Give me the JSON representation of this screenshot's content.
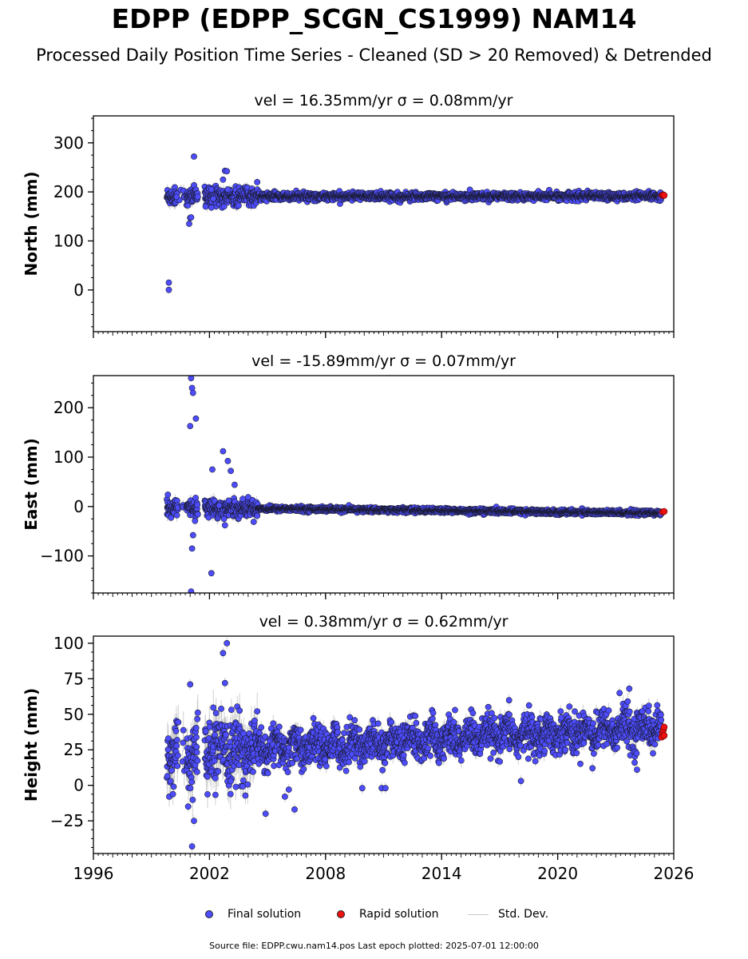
{
  "title": "EDPP (EDPP_SCGN_CS1999) NAM14",
  "subtitle": "Processed Daily Position Time Series - Cleaned (SD > 20 Removed) & Detrended",
  "colors": {
    "final": "#4d4dff",
    "rapid": "#ee1111",
    "stddev": "#bdbdbd",
    "edge": "#1a1a2e"
  },
  "legend": {
    "final": "Final solution",
    "rapid": "Rapid solution",
    "stddev": "Std. Dev."
  },
  "footer": "Source file: EDPP.cwu.nam14.pos  Last epoch plotted: 2025-07-01 12:00:00",
  "chart_data": [
    {
      "type": "scatter",
      "id": "north",
      "title": "vel = 16.35mm/yr   σ = 0.08mm/yr",
      "ylabel": "North (mm)",
      "xlim": [
        1996,
        2026
      ],
      "ylim": [
        -85,
        355
      ],
      "yticks": [
        0,
        100,
        200,
        300
      ],
      "ytick_labels": [
        "0",
        "100",
        "200",
        "300"
      ],
      "xticks": [
        1996,
        2002,
        2008,
        2014,
        2020,
        2026
      ],
      "show_xtick_labels": false,
      "outliers": [
        [
          1999.9,
          15
        ],
        [
          1999.9,
          0
        ],
        [
          2000.95,
          135
        ],
        [
          2001.0,
          147
        ],
        [
          2001.05,
          148
        ],
        [
          2001.2,
          272
        ],
        [
          2002.1,
          168
        ],
        [
          2002.2,
          186
        ],
        [
          2002.65,
          168
        ],
        [
          2002.75,
          170
        ],
        [
          2002.7,
          225
        ],
        [
          2002.8,
          243
        ],
        [
          2002.9,
          242
        ],
        [
          2002.95,
          205
        ],
        [
          2002.1,
          205
        ],
        [
          2001.8,
          170
        ],
        [
          2000.3,
          190
        ]
      ],
      "model": {
        "start": 1999.8,
        "end": 2025.35,
        "base": 191,
        "slope": 0.0,
        "noise": 3.8,
        "early_noise": 9
      },
      "rapid": [
        [
          2025.4,
          193
        ],
        [
          2025.45,
          194
        ],
        [
          2025.5,
          193
        ]
      ]
    },
    {
      "type": "scatter",
      "id": "east",
      "title": "vel = -15.89mm/yr   σ = 0.07mm/yr",
      "ylabel": "East (mm)",
      "xlim": [
        1996,
        2026
      ],
      "ylim": [
        -175,
        265
      ],
      "yticks": [
        -100,
        0,
        100,
        200
      ],
      "ytick_labels": [
        "−100",
        "0",
        "100",
        "200"
      ],
      "xticks": [
        1996,
        2002,
        2008,
        2014,
        2020,
        2026
      ],
      "show_xtick_labels": false,
      "outliers": [
        [
          1999.85,
          24
        ],
        [
          2001.05,
          260
        ],
        [
          2001.1,
          240
        ],
        [
          2001.15,
          230
        ],
        [
          2001.0,
          163
        ],
        [
          2001.3,
          178
        ],
        [
          2001.15,
          -58
        ],
        [
          2001.1,
          -85
        ],
        [
          2001.05,
          -172
        ],
        [
          2002.1,
          -135
        ],
        [
          2002.15,
          75
        ],
        [
          2002.7,
          112
        ],
        [
          2002.95,
          92
        ],
        [
          2003.1,
          72
        ],
        [
          2003.3,
          44
        ],
        [
          2002.8,
          -38
        ],
        [
          2002.75,
          -25
        ],
        [
          2003.0,
          12
        ],
        [
          2002.5,
          2
        ]
      ],
      "model": {
        "start": 1999.8,
        "end": 2025.35,
        "base": -2,
        "slope": -0.45,
        "noise": 2.4,
        "early_noise": 8
      },
      "rapid": [
        [
          2025.42,
          -11
        ],
        [
          2025.5,
          -10
        ]
      ]
    },
    {
      "type": "scatter",
      "id": "height",
      "title": "vel = 0.38mm/yr   σ = 0.62mm/yr",
      "ylabel": "Height (mm)",
      "xlim": [
        1996,
        2026
      ],
      "ylim": [
        -48,
        105
      ],
      "yticks": [
        -25,
        0,
        25,
        50,
        75,
        100
      ],
      "ytick_labels": [
        "−25",
        "0",
        "25",
        "50",
        "75",
        "100"
      ],
      "xticks": [
        1996,
        2002,
        2008,
        2014,
        2020,
        2026
      ],
      "xtick_labels": [
        "1996",
        "2002",
        "2008",
        "2014",
        "2020",
        "2026"
      ],
      "show_xtick_labels": true,
      "outliers": [
        [
          2001.0,
          71
        ],
        [
          2001.1,
          -43
        ],
        [
          2002.7,
          93
        ],
        [
          2002.8,
          72
        ],
        [
          2002.9,
          100
        ],
        [
          2004.9,
          -20
        ],
        [
          2005.9,
          -8
        ],
        [
          2006.4,
          -17
        ],
        [
          2006.1,
          -3
        ],
        [
          2009.9,
          -2
        ],
        [
          2010.9,
          -2
        ],
        [
          2011.1,
          -2
        ],
        [
          2018.1,
          3
        ],
        [
          2021.8,
          12
        ],
        [
          2023.7,
          68
        ],
        [
          2023.2,
          65
        ],
        [
          2024.1,
          11
        ],
        [
          2000.9,
          -15
        ],
        [
          2001.2,
          -25
        ],
        [
          2002.3,
          5
        ],
        [
          2003.1,
          3
        ]
      ],
      "model": {
        "start": 1999.8,
        "end": 2025.35,
        "base": 22,
        "slope": 0.75,
        "noise": 6.5,
        "early_noise": 11,
        "seasonal": 4.5
      },
      "rapid": [
        [
          2025.38,
          34
        ],
        [
          2025.42,
          37
        ],
        [
          2025.46,
          39
        ],
        [
          2025.5,
          41
        ],
        [
          2025.5,
          35
        ]
      ]
    }
  ]
}
